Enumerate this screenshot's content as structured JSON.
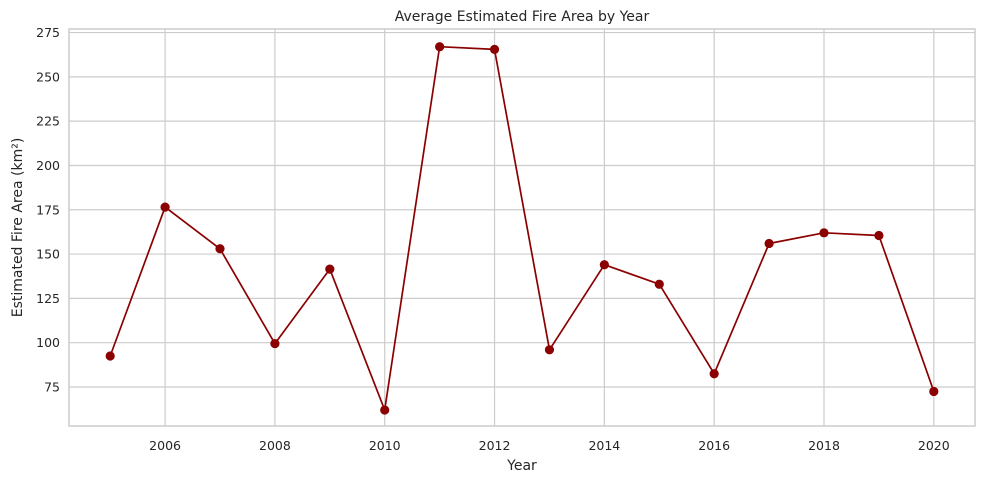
{
  "chart_data": {
    "type": "line",
    "title": "Average Estimated Fire Area by Year",
    "xlabel": "Year",
    "ylabel": "Estimated Fire Area (km²)",
    "xlim": [
      2004.25,
      2020.75
    ],
    "ylim": [
      53.0,
      277.0
    ],
    "xticks": [
      2006,
      2008,
      2010,
      2012,
      2014,
      2016,
      2018,
      2020
    ],
    "yticks": [
      75,
      100,
      125,
      150,
      175,
      200,
      225,
      250,
      275
    ],
    "grid": true,
    "line_color": "#8b0000",
    "marker": "circle",
    "series": [
      {
        "x": [
          2005,
          2006,
          2007,
          2008,
          2009,
          2010,
          2011,
          2012,
          2013,
          2014,
          2015,
          2016,
          2017,
          2018,
          2019,
          2020
        ],
        "y": [
          92.5,
          176.5,
          153,
          99.5,
          141.5,
          62,
          267,
          265.5,
          96,
          144,
          133,
          82.5,
          156,
          162,
          160.5,
          72.5
        ]
      }
    ]
  }
}
